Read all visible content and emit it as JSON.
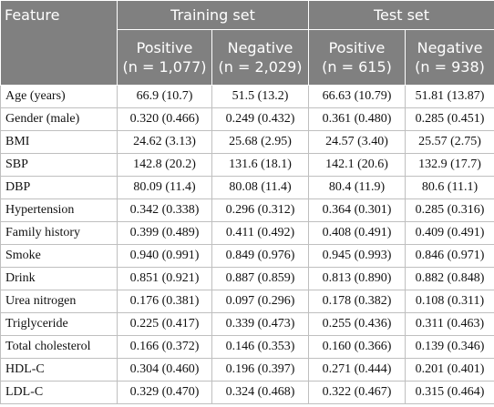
{
  "table": {
    "header": {
      "feature": "Feature",
      "groups": [
        "Training set",
        "Test set"
      ],
      "columns": [
        {
          "label": "Positive",
          "n": "(n = 1,077)"
        },
        {
          "label": "Negative",
          "n": "(n = 2,029)"
        },
        {
          "label": "Positive",
          "n": "(n = 615)"
        },
        {
          "label": "Negative",
          "n": "(n = 938)"
        }
      ]
    },
    "rows": [
      [
        "Age (years)",
        "66.9 (10.7)",
        "51.5 (13.2)",
        "66.63 (10.79)",
        "51.81 (13.87)"
      ],
      [
        "Gender (male)",
        "0.320 (0.466)",
        "0.249 (0.432)",
        "0.361 (0.480)",
        "0.285 (0.451)"
      ],
      [
        "BMI",
        "24.62 (3.13)",
        "25.68 (2.95)",
        "24.57 (3.40)",
        "25.57 (2.75)"
      ],
      [
        "SBP",
        "142.8 (20.2)",
        "131.6 (18.1)",
        "142.1 (20.6)",
        "132.9 (17.7)"
      ],
      [
        "DBP",
        "80.09 (11.4)",
        "80.08 (11.4)",
        "80.4 (11.9)",
        "80.6 (11.1)"
      ],
      [
        "Hypertension",
        "0.342 (0.338)",
        "0.296 (0.312)",
        "0.364 (0.301)",
        "0.285 (0.316)"
      ],
      [
        "Family history",
        "0.399 (0.489)",
        "0.411 (0.492)",
        "0.408 (0.491)",
        "0.409 (0.491)"
      ],
      [
        "Smoke",
        "0.940 (0.991)",
        "0.849 (0.976)",
        "0.945 (0.993)",
        "0.846 (0.971)"
      ],
      [
        "Drink",
        "0.851 (0.921)",
        "0.887 (0.859)",
        "0.813 (0.890)",
        "0.882 (0.848)"
      ],
      [
        "Urea nitrogen",
        "0.176 (0.381)",
        "0.097 (0.296)",
        "0.178 (0.382)",
        "0.108 (0.311)"
      ],
      [
        "Triglyceride",
        "0.225 (0.417)",
        "0.339 (0.473)",
        "0.255 (0.436)",
        "0.311 (0.463)"
      ],
      [
        "Total cholesterol",
        "0.166 (0.372)",
        "0.146 (0.353)",
        "0.160 (0.366)",
        "0.139 (0.346)"
      ],
      [
        "HDL-C",
        "0.304 (0.460)",
        "0.196 (0.397)",
        "0.271 (0.444)",
        "0.201 (0.401)"
      ],
      [
        "LDL-C",
        "0.329 (0.470)",
        "0.324 (0.468)",
        "0.322 (0.467)",
        "0.315 (0.464)"
      ]
    ]
  }
}
